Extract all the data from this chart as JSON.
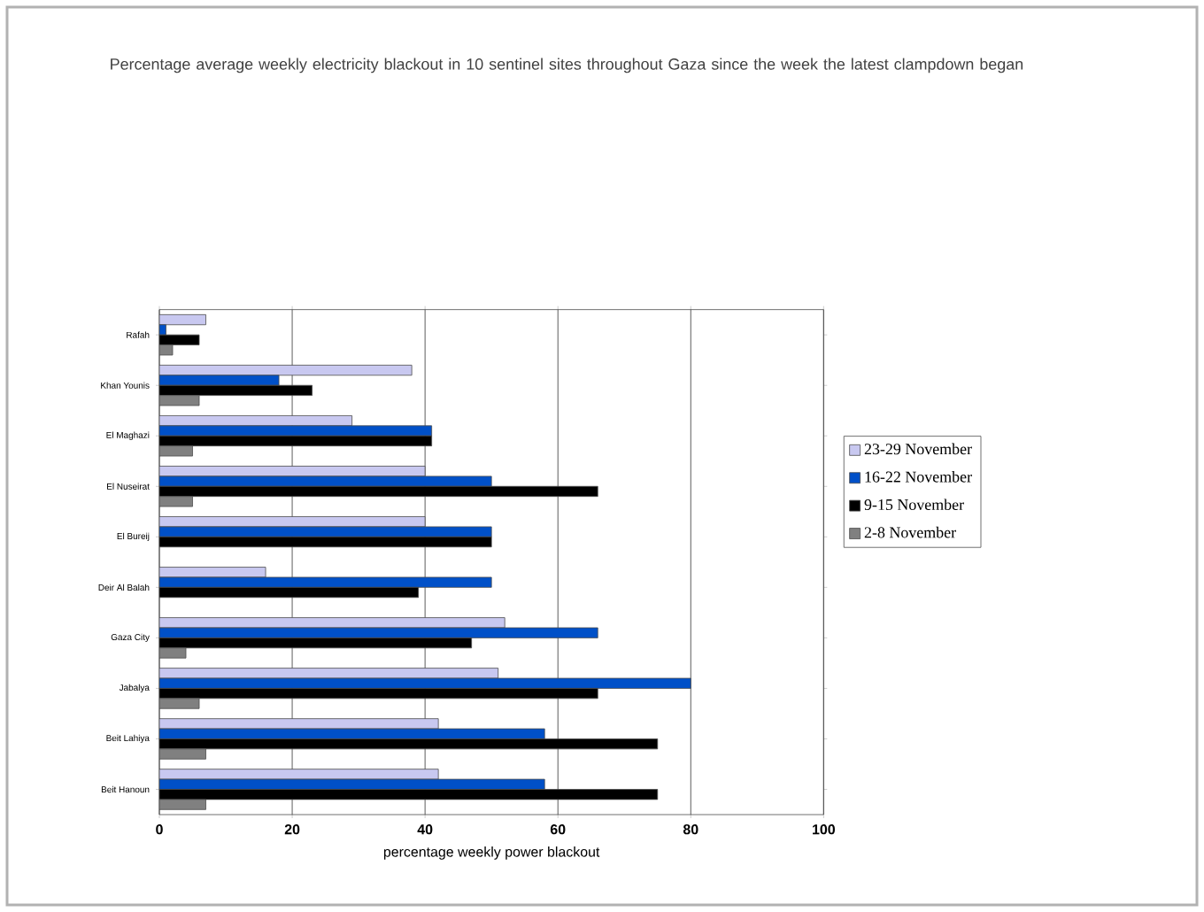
{
  "chart_data": {
    "type": "bar",
    "orientation": "horizontal",
    "title": "Percentage average weekly electricity blackout in 10 sentinel sites throughout Gaza since the week the latest clampdown began",
    "xlabel": "percentage weekly power blackout",
    "categories": [
      "Rafah",
      "Khan Younis",
      "El Maghazi",
      "El Nuseirat",
      "El Bureij",
      "Deir Al Balah",
      "Gaza City",
      "Jabalya",
      "Beit Lahiya",
      "Beit Hanoun"
    ],
    "series": [
      {
        "name": "23-29 November",
        "color": "#c8c8f0",
        "values": [
          7,
          38,
          29,
          40,
          40,
          16,
          52,
          51,
          42,
          42
        ]
      },
      {
        "name": "16-22 November",
        "color": "#0050c8",
        "values": [
          1,
          18,
          41,
          50,
          50,
          50,
          66,
          80,
          58,
          58
        ]
      },
      {
        "name": "9-15 November",
        "color": "#000000",
        "values": [
          6,
          23,
          41,
          66,
          50,
          39,
          47,
          66,
          75,
          75
        ]
      },
      {
        "name": "2-8 November",
        "color": "#808080",
        "values": [
          2,
          6,
          5,
          5,
          null,
          null,
          4,
          6,
          7,
          7
        ]
      }
    ],
    "xlim": [
      0,
      100
    ],
    "xticks": [
      0,
      20,
      40,
      60,
      80,
      100
    ],
    "grid": "x",
    "legend": "right"
  }
}
